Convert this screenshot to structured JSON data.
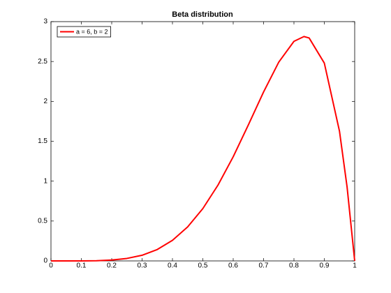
{
  "chart_data": {
    "type": "line",
    "title": "Beta distribution",
    "x": [
      0,
      0.05,
      0.1,
      0.15,
      0.2,
      0.25,
      0.3,
      0.35,
      0.4,
      0.45,
      0.5,
      0.55,
      0.6,
      0.65,
      0.7,
      0.75,
      0.8,
      0.833,
      0.85,
      0.9,
      0.95,
      0.975,
      1
    ],
    "series": [
      {
        "name": "a = 6, b = 2",
        "color": "#ff0000",
        "values": [
          0,
          0,
          0.0004,
          0.0027,
          0.011,
          0.031,
          0.071,
          0.143,
          0.258,
          0.426,
          0.656,
          0.951,
          1.306,
          1.706,
          2.118,
          2.492,
          2.753,
          2.813,
          2.795,
          2.48,
          1.625,
          0.925,
          0
        ]
      }
    ],
    "xlim": [
      0,
      1
    ],
    "ylim": [
      0,
      3
    ],
    "xticks": [
      0,
      0.1,
      0.2,
      0.3,
      0.4,
      0.5,
      0.6,
      0.7,
      0.8,
      0.9,
      1
    ],
    "yticks": [
      0,
      0.5,
      1,
      1.5,
      2,
      2.5,
      3
    ],
    "grid": false,
    "legend": "upper-left"
  }
}
